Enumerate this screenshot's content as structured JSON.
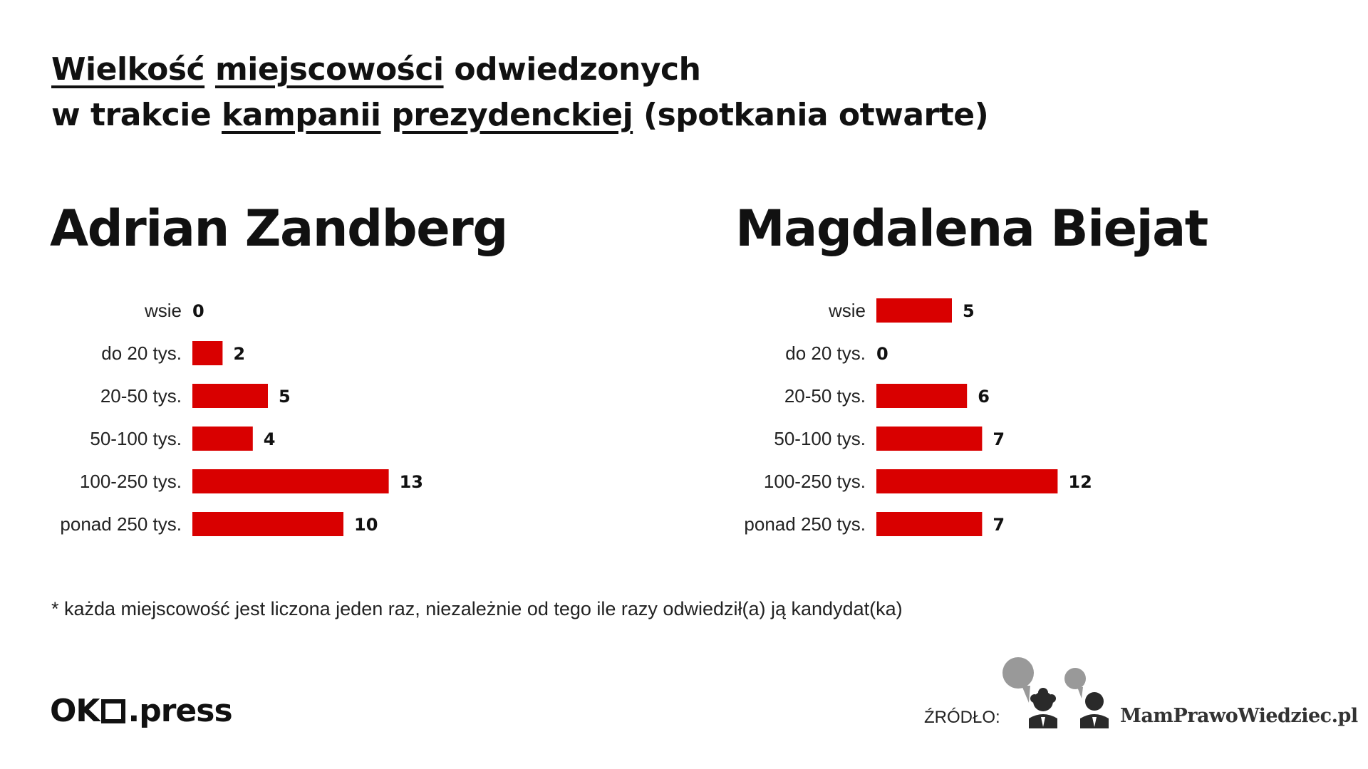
{
  "title": {
    "words_line1": [
      "Wielkość",
      "miejscowości",
      "odwiedzonych"
    ],
    "words_line2": [
      "w trakcie",
      "kampanii",
      "prezydenckiej",
      "(spotkania otwarte)"
    ]
  },
  "colors": {
    "bar": "#d90000",
    "text": "#111111"
  },
  "chart_data": [
    {
      "type": "bar",
      "orientation": "horizontal",
      "title": "Adrian Zandberg",
      "categories": [
        "wsie",
        "do 20 tys.",
        "20-50 tys.",
        "50-100 tys.",
        "100-250 tys.",
        "ponad 250 tys."
      ],
      "values": [
        0,
        2,
        5,
        4,
        13,
        10
      ],
      "xlim": [
        0,
        13
      ],
      "grid": false
    },
    {
      "type": "bar",
      "orientation": "horizontal",
      "title": "Magdalena Biejat",
      "categories": [
        "wsie",
        "do 20 tys.",
        "20-50 tys.",
        "50-100 tys.",
        "100-250 tys.",
        "ponad 250 tys."
      ],
      "values": [
        5,
        0,
        6,
        7,
        12,
        7
      ],
      "xlim": [
        0,
        12
      ],
      "grid": false
    }
  ],
  "footnote": "* każda miejscowość jest liczona jeden raz, niezależnie od tego ile razy odwiedził(a) ją kandydat(ka)",
  "footer": {
    "logo_left": "OK",
    "logo_right": ".press",
    "source_label": "ŹRÓDŁO:",
    "source_name": "MamPrawoWiedziec.pl",
    "source_icon": "speech-bubbles-people-icon"
  }
}
